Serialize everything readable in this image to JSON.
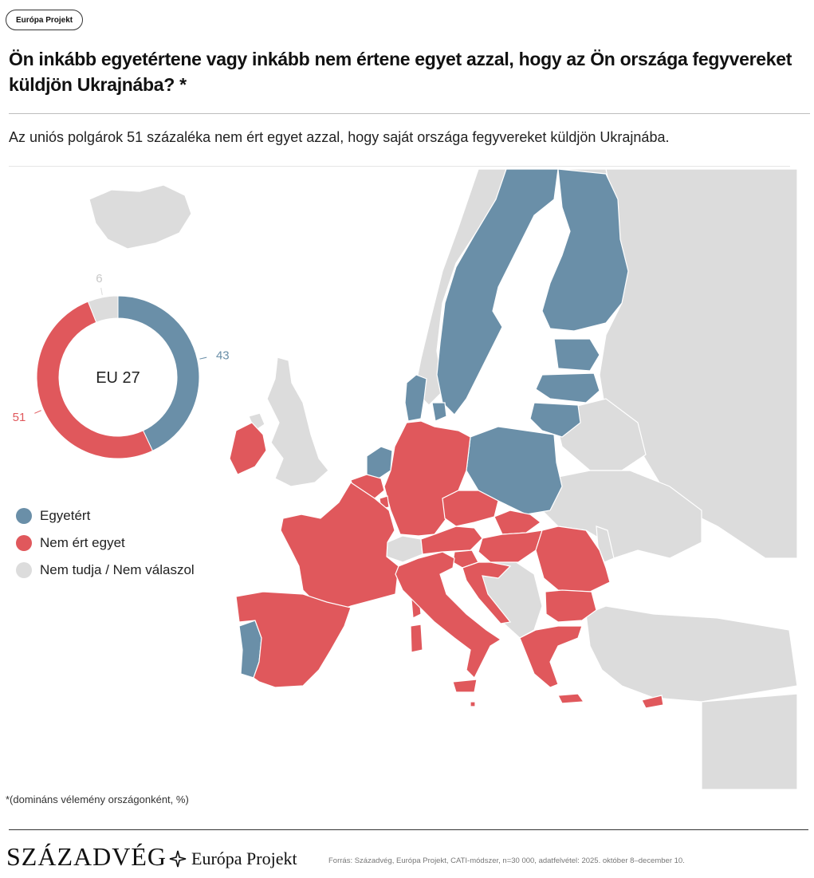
{
  "header": {
    "tag": "Európa Projekt",
    "title": "Ön inkább egyetértene vagy inkább nem értene egyet azzal, hogy az Ön országa fegyvereket küldjön Ukrajnába? *",
    "subtitle": "Az uniós polgárok 51 százaléka nem ért egyet azzal, hogy saját országa fegyvereket küldjön Ukrajnába."
  },
  "colors": {
    "agree": "#6a8fa8",
    "disagree": "#e0585c",
    "unknown": "#dcdcdc"
  },
  "donut": {
    "center_label": "EU 27",
    "segments": [
      {
        "key": "agree",
        "label": "Egyetért",
        "value": 43
      },
      {
        "key": "disagree",
        "label": "Nem ért egyet",
        "value": 51
      },
      {
        "key": "unknown",
        "label": "Nem tudja / Nem válaszol",
        "value": 6
      }
    ]
  },
  "legend": [
    {
      "key": "agree",
      "label": "Egyetért"
    },
    {
      "key": "disagree",
      "label": "Nem ért egyet"
    },
    {
      "key": "unknown",
      "label": "Nem tudja / Nem válaszol"
    }
  ],
  "footer": {
    "note": "*(domináns vélemény országonként, %)",
    "brand_primary": "SZÁZADVÉG",
    "brand_secondary": "Európa Projekt",
    "source": "Forrás: Századvég, Európa Projekt, CATI-módszer, n=30 000, adatfelvétel: 2025. október 8–december 10."
  }
}
